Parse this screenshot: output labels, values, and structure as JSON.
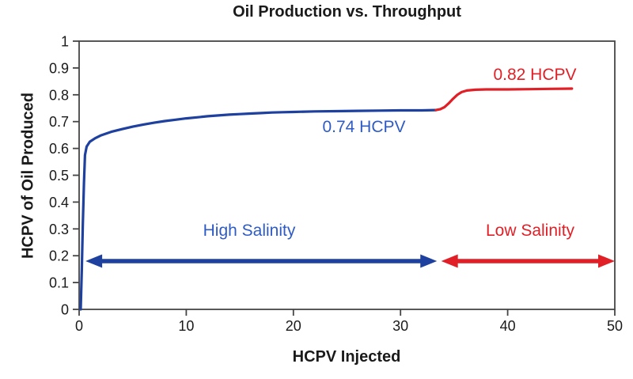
{
  "figure": {
    "title": "Oil Production vs. Throughput",
    "x_axis_label": "HCPV Injected",
    "y_axis_label": "HCPV of Oil Produced",
    "colors": {
      "high_salinity_line": "#1E409F",
      "low_salinity_line": "#E01F26",
      "high_salinity_text": "#2F5BC5",
      "low_salinity_text": "#E01F26",
      "axis": "#454545",
      "title_text": "#1a1a1a"
    }
  },
  "chart_data": {
    "type": "line",
    "title": "Oil Production vs. Throughput",
    "xlabel": "HCPV Injected",
    "ylabel": "HCPV of Oil Produced",
    "xlim": [
      0,
      50
    ],
    "ylim": [
      0,
      1
    ],
    "grid": false,
    "legend_position": "none",
    "x_tick_values": [
      0,
      10,
      20,
      30,
      40,
      50
    ],
    "x_tick_labels": [
      "0",
      "10",
      "20",
      "30",
      "40",
      "50"
    ],
    "y_tick_values": [
      0,
      0.1,
      0.2,
      0.3,
      0.4,
      0.5,
      0.6,
      0.7,
      0.8,
      0.9,
      1
    ],
    "y_tick_labels": [
      "0",
      "0.1",
      "0.2",
      "0.3",
      "0.4",
      "0.5",
      "0.6",
      "0.7",
      "0.8",
      "0.9",
      "1"
    ],
    "series": [
      {
        "name": "High Salinity",
        "color": "#1E409F",
        "plateau_value": 0.74,
        "x": [
          0.15,
          0.25,
          0.35,
          0.45,
          0.55,
          0.7,
          1.0,
          1.5,
          2,
          3,
          4,
          5,
          6,
          7,
          8,
          9,
          10,
          11,
          12,
          13,
          14,
          15,
          16,
          17,
          18,
          19,
          20,
          22,
          24,
          26,
          28,
          30,
          32,
          33.3
        ],
        "y": [
          0,
          0.15,
          0.32,
          0.47,
          0.575,
          0.607,
          0.625,
          0.638,
          0.648,
          0.662,
          0.672,
          0.681,
          0.689,
          0.696,
          0.702,
          0.707,
          0.712,
          0.716,
          0.72,
          0.723,
          0.726,
          0.728,
          0.73,
          0.732,
          0.734,
          0.735,
          0.736,
          0.738,
          0.739,
          0.74,
          0.741,
          0.742,
          0.742,
          0.743
        ]
      },
      {
        "name": "Low Salinity",
        "color": "#E01F26",
        "plateau_value": 0.82,
        "x": [
          33.3,
          33.7,
          34.1,
          34.5,
          34.9,
          35.3,
          35.7,
          36.2,
          37,
          38,
          40,
          42,
          44,
          46
        ],
        "y": [
          0.743,
          0.746,
          0.754,
          0.768,
          0.785,
          0.8,
          0.81,
          0.816,
          0.819,
          0.82,
          0.82,
          0.821,
          0.822,
          0.823
        ]
      }
    ],
    "annotations": [
      {
        "text": "0.74 HCPV",
        "x": 26.6,
        "y": 0.67,
        "color": "#2F5BC5"
      },
      {
        "text": "0.82 HCPV",
        "x": 42.5,
        "y": 0.875,
        "color": "#E01F26"
      },
      {
        "text": "High Salinity",
        "x": 15.9,
        "y": 0.29,
        "color": "#2F5BC5"
      },
      {
        "text": "Low Salinity",
        "x": 42.1,
        "y": 0.29,
        "color": "#E01F26"
      }
    ],
    "arrows": [
      {
        "label": "High Salinity",
        "x_start": 0.6,
        "x_end": 33.4,
        "y": 0.18,
        "color": "#1E409F",
        "double_headed": true
      },
      {
        "label": "Low Salinity",
        "x_start": 33.8,
        "x_end": 50.0,
        "y": 0.18,
        "color": "#E01F26",
        "double_headed": true
      }
    ]
  }
}
